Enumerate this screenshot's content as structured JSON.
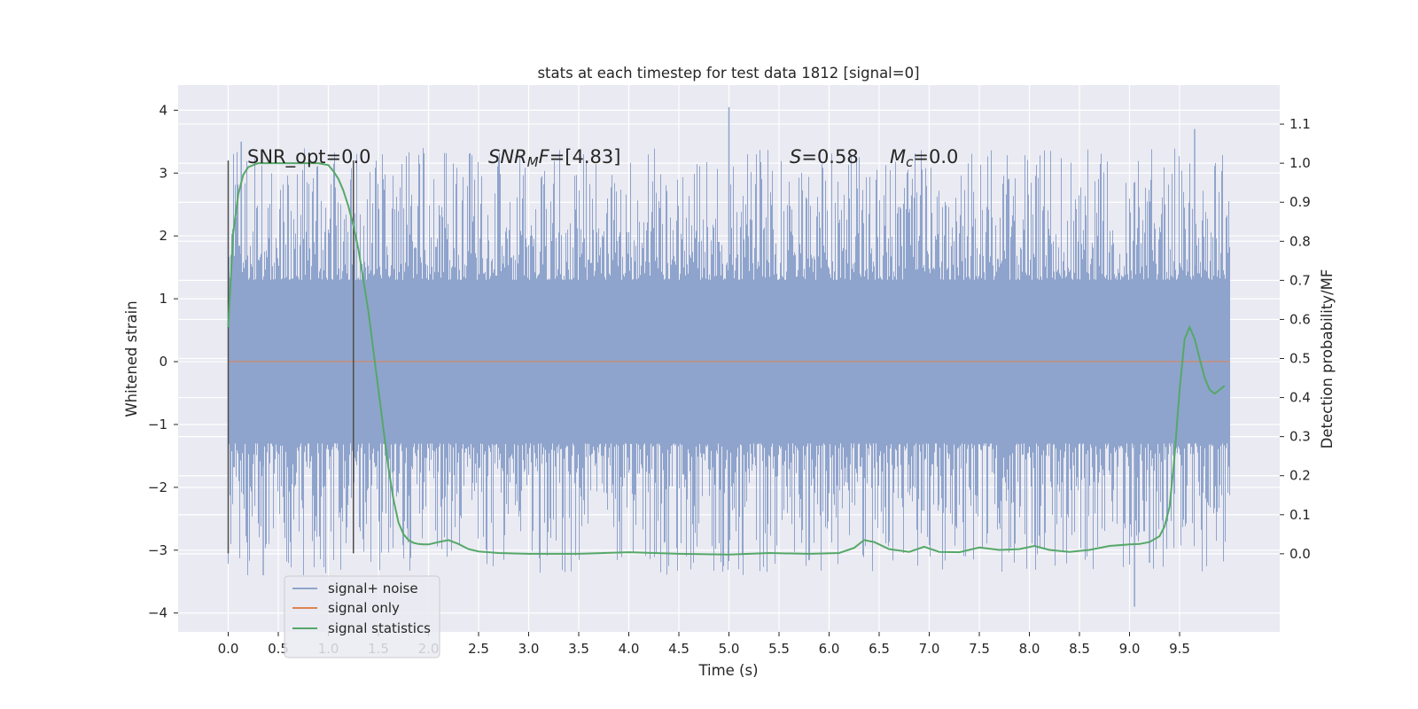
{
  "chart_data": {
    "type": "line",
    "title": "stats at each timestep for test data 1812 [signal=0]",
    "xlabel": "Time (s)",
    "ylabel": "Whitened strain",
    "ylabel_right": "Detection probability/MF",
    "xlim": [
      -0.5,
      10.5
    ],
    "ylim": [
      -4.3,
      4.4
    ],
    "ylim_right": [
      -0.2,
      1.2
    ],
    "x_ticks": [
      "0.0",
      "0.5",
      "1.0",
      "1.5",
      "2.0",
      "2.5",
      "3.0",
      "3.5",
      "4.0",
      "4.5",
      "5.0",
      "5.5",
      "6.0",
      "6.5",
      "7.0",
      "7.5",
      "8.0",
      "8.5",
      "9.0",
      "9.5"
    ],
    "y_ticks": [
      "4",
      "3",
      "2",
      "1",
      "0",
      "−1",
      "−2",
      "−3",
      "−4"
    ],
    "y_right_ticks": [
      "0.0",
      "0.1",
      "0.2",
      "0.3",
      "0.4",
      "0.5",
      "0.6",
      "0.7",
      "0.8",
      "0.9",
      "1.0",
      "1.1"
    ],
    "annotations": {
      "snr_opt": "SNR_opt=0.0",
      "snr_mf_sym": "SNR",
      "snr_mf_sub": "M",
      "snr_mf_tail": "F",
      "snr_mf_value": "=[4.83]",
      "s_sym": "S",
      "s_value": "=0.58",
      "mc_sym": "M",
      "mc_sub": "c",
      "mc_value": "=0.0"
    },
    "vlines": [
      0.0,
      1.25
    ],
    "series": [
      {
        "name": "signal+ noise",
        "color": "#8fa4cc",
        "t_range": [
          0.0,
          10.0
        ],
        "amplitude": 1.3,
        "max": 4.05,
        "min": -3.9
      },
      {
        "name": "signal only",
        "color": "#dd8452",
        "x": [
          0.0,
          10.0
        ],
        "y": [
          0.0,
          0.0
        ]
      },
      {
        "name": "signal statistics",
        "color": "#55a868",
        "axis": "right",
        "x": [
          0.0,
          0.05,
          0.1,
          0.15,
          0.2,
          0.3,
          0.4,
          0.5,
          0.6,
          0.7,
          0.8,
          0.9,
          1.0,
          1.05,
          1.1,
          1.15,
          1.2,
          1.25,
          1.3,
          1.35,
          1.4,
          1.5,
          1.55,
          1.6,
          1.65,
          1.7,
          1.75,
          1.8,
          1.85,
          1.9,
          1.95,
          2.0,
          2.1,
          2.2,
          2.3,
          2.4,
          2.5,
          2.7,
          3.0,
          3.5,
          4.0,
          4.5,
          5.0,
          5.4,
          5.8,
          6.1,
          6.25,
          6.35,
          6.45,
          6.6,
          6.8,
          6.95,
          7.1,
          7.3,
          7.5,
          7.7,
          7.9,
          8.05,
          8.2,
          8.4,
          8.6,
          8.8,
          9.0,
          9.1,
          9.2,
          9.3,
          9.35,
          9.4,
          9.45,
          9.5,
          9.55,
          9.6,
          9.65,
          9.7,
          9.75,
          9.8,
          9.85,
          9.9,
          9.95
        ],
        "y": [
          0.58,
          0.82,
          0.92,
          0.97,
          0.99,
          1.0,
          1.0,
          1.0,
          1.0,
          1.0,
          1.0,
          1.0,
          0.995,
          0.98,
          0.96,
          0.93,
          0.89,
          0.84,
          0.78,
          0.7,
          0.62,
          0.42,
          0.32,
          0.22,
          0.14,
          0.08,
          0.05,
          0.035,
          0.028,
          0.025,
          0.024,
          0.024,
          0.03,
          0.035,
          0.025,
          0.012,
          0.006,
          0.002,
          0.0,
          0.0,
          0.004,
          0.0,
          -0.002,
          0.002,
          0.0,
          0.002,
          0.015,
          0.035,
          0.03,
          0.012,
          0.005,
          0.018,
          0.005,
          0.004,
          0.016,
          0.01,
          0.012,
          0.02,
          0.01,
          0.005,
          0.01,
          0.02,
          0.024,
          0.025,
          0.03,
          0.045,
          0.07,
          0.12,
          0.25,
          0.42,
          0.55,
          0.58,
          0.55,
          0.5,
          0.45,
          0.42,
          0.41,
          0.42,
          0.43
        ]
      }
    ],
    "legend_position": "lower-left",
    "grid": true
  }
}
